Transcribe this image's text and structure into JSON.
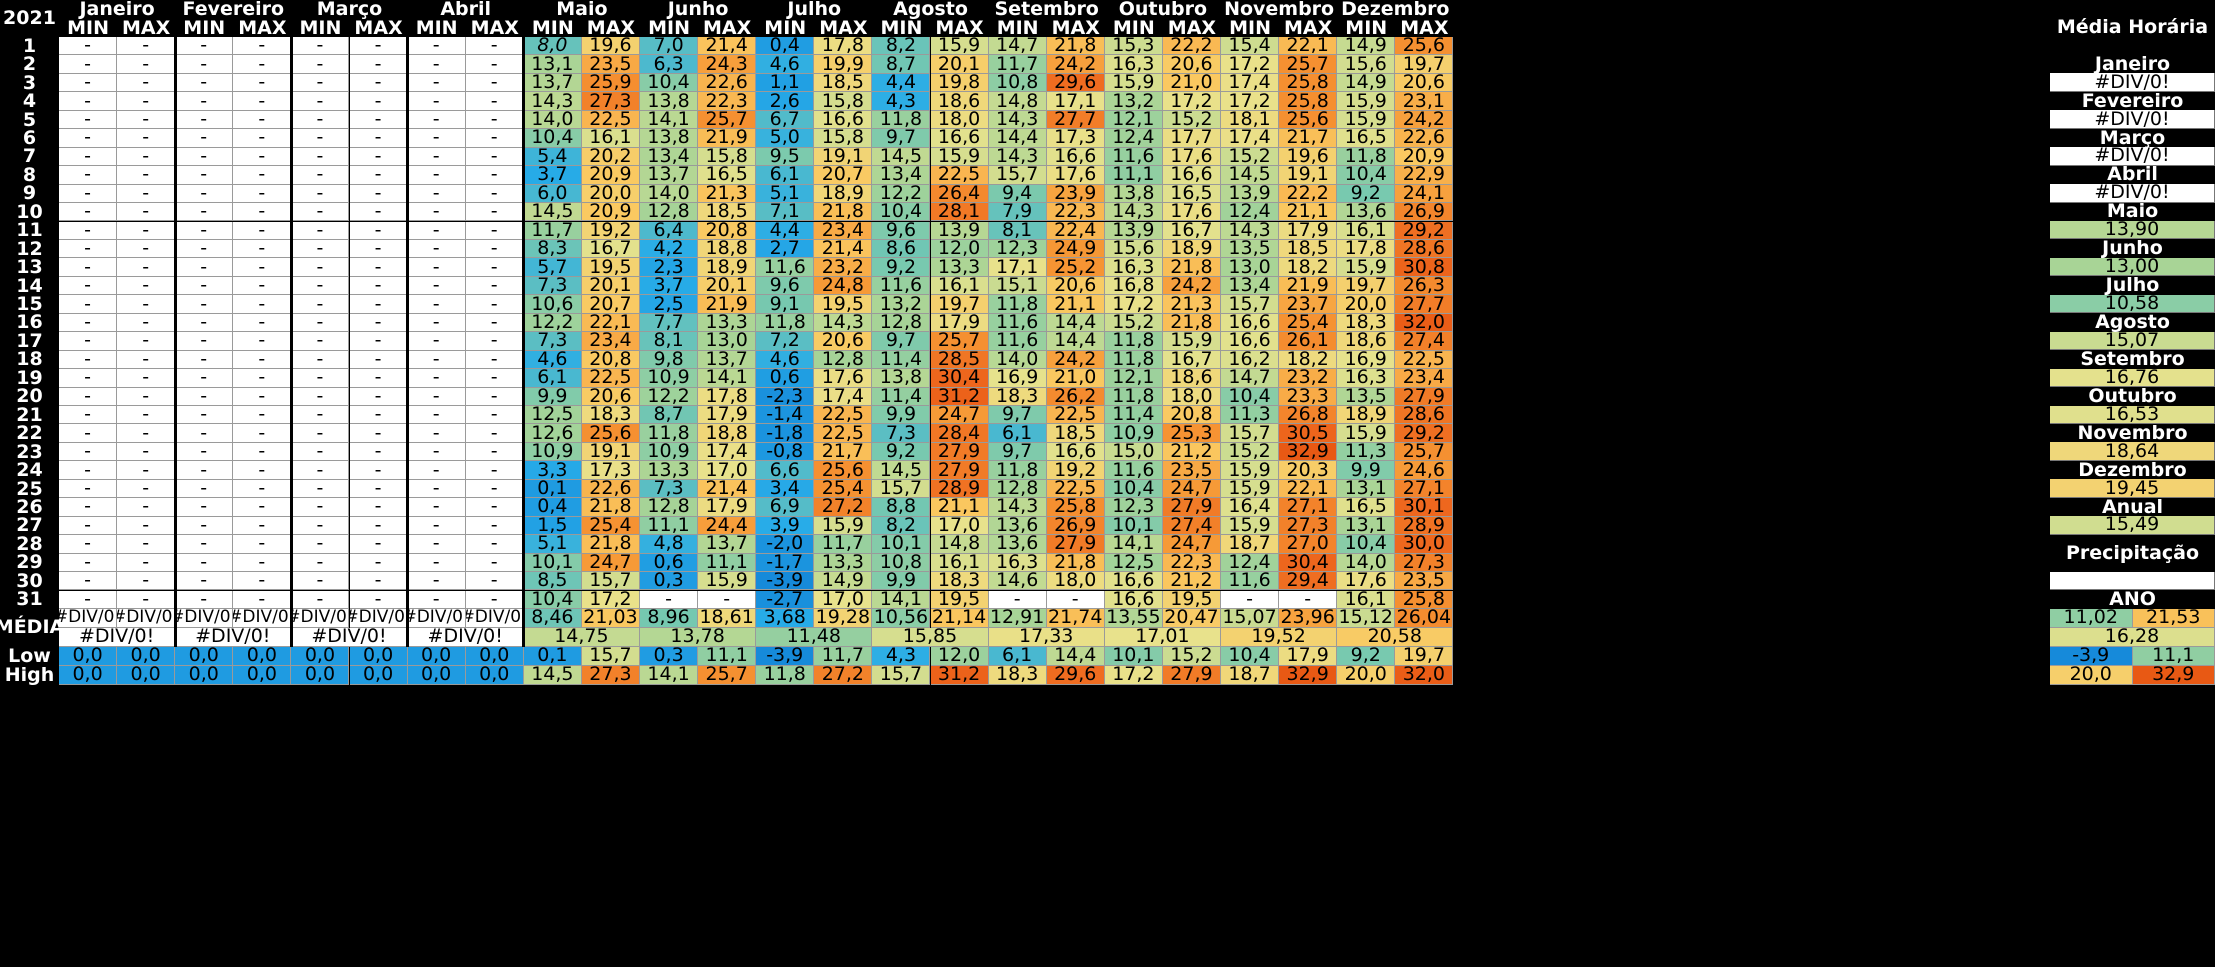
{
  "year": "2021",
  "months": [
    "Janeiro",
    "Fevereiro",
    "Março",
    "Abril",
    "Maio",
    "Junho",
    "Julho",
    "Agosto",
    "Setembro",
    "Outubro",
    "Novembro",
    "Dezembro"
  ],
  "min_label": "MIN",
  "max_label": "MAX",
  "days": [
    "1",
    "2",
    "3",
    "4",
    "5",
    "6",
    "7",
    "8",
    "9",
    "10",
    "11",
    "12",
    "13",
    "14",
    "15",
    "16",
    "17",
    "18",
    "19",
    "20",
    "21",
    "22",
    "23",
    "24",
    "25",
    "26",
    "27",
    "28",
    "29",
    "30",
    "31"
  ],
  "table": [
    [
      "-",
      "-",
      "-",
      "-",
      "-",
      "-",
      "-",
      "-",
      "8,0",
      "19,6",
      "7,0",
      "21,4",
      "0,4",
      "17,8",
      "8,2",
      "15,9",
      "14,7",
      "21,8",
      "15,3",
      "22,2",
      "15,4",
      "22,1",
      "14,9",
      "25,6"
    ],
    [
      "-",
      "-",
      "-",
      "-",
      "-",
      "-",
      "-",
      "-",
      "13,1",
      "23,5",
      "6,3",
      "24,3",
      "4,6",
      "19,9",
      "8,7",
      "20,1",
      "11,7",
      "24,2",
      "16,3",
      "20,6",
      "17,2",
      "25,7",
      "15,6",
      "19,7"
    ],
    [
      "-",
      "-",
      "-",
      "-",
      "-",
      "-",
      "-",
      "-",
      "13,7",
      "25,9",
      "10,4",
      "22,6",
      "1,1",
      "18,5",
      "4,4",
      "19,8",
      "10,8",
      "29,6",
      "15,9",
      "21,0",
      "17,4",
      "25,8",
      "14,9",
      "20,6"
    ],
    [
      "-",
      "-",
      "-",
      "-",
      "-",
      "-",
      "-",
      "-",
      "14,3",
      "27,3",
      "13,8",
      "22,3",
      "2,6",
      "15,8",
      "4,3",
      "18,6",
      "14,8",
      "17,1",
      "13,2",
      "17,2",
      "17,2",
      "25,8",
      "15,9",
      "23,1"
    ],
    [
      "-",
      "-",
      "-",
      "-",
      "-",
      "-",
      "-",
      "-",
      "14,0",
      "22,5",
      "14,1",
      "25,7",
      "6,7",
      "16,6",
      "11,8",
      "18,0",
      "14,3",
      "27,7",
      "12,1",
      "15,2",
      "18,1",
      "25,6",
      "15,9",
      "24,2"
    ],
    [
      "-",
      "-",
      "-",
      "-",
      "-",
      "-",
      "-",
      "-",
      "10,4",
      "16,1",
      "13,8",
      "21,9",
      "5,0",
      "15,8",
      "9,7",
      "16,6",
      "14,4",
      "17,3",
      "12,4",
      "17,7",
      "17,4",
      "21,7",
      "16,5",
      "22,6"
    ],
    [
      "-",
      "-",
      "-",
      "-",
      "-",
      "-",
      "-",
      "-",
      "5,4",
      "20,2",
      "13,4",
      "15,8",
      "9,5",
      "19,1",
      "14,5",
      "15,9",
      "14,3",
      "16,6",
      "11,6",
      "17,6",
      "15,2",
      "19,6",
      "11,8",
      "20,9"
    ],
    [
      "-",
      "-",
      "-",
      "-",
      "-",
      "-",
      "-",
      "-",
      "3,7",
      "20,9",
      "13,7",
      "16,5",
      "6,1",
      "20,7",
      "13,4",
      "22,5",
      "15,7",
      "17,6",
      "11,1",
      "16,6",
      "14,5",
      "19,1",
      "10,4",
      "22,9"
    ],
    [
      "-",
      "-",
      "-",
      "-",
      "-",
      "-",
      "-",
      "-",
      "6,0",
      "20,0",
      "14,0",
      "21,3",
      "5,1",
      "18,9",
      "12,2",
      "26,4",
      "9,4",
      "23,9",
      "13,8",
      "16,5",
      "13,9",
      "22,2",
      "9,2",
      "24,1"
    ],
    [
      "-",
      "-",
      "-",
      "-",
      "-",
      "-",
      "-",
      "-",
      "14,5",
      "20,9",
      "12,8",
      "18,5",
      "7,1",
      "21,8",
      "10,4",
      "28,1",
      "7,9",
      "22,3",
      "14,3",
      "17,6",
      "12,4",
      "21,1",
      "13,6",
      "26,9"
    ],
    [
      "-",
      "-",
      "-",
      "-",
      "-",
      "-",
      "-",
      "-",
      "11,7",
      "19,2",
      "6,4",
      "20,8",
      "4,4",
      "23,4",
      "9,6",
      "13,9",
      "8,1",
      "22,4",
      "13,9",
      "16,7",
      "14,3",
      "17,9",
      "16,1",
      "29,2"
    ],
    [
      "-",
      "-",
      "-",
      "-",
      "-",
      "-",
      "-",
      "-",
      "8,3",
      "16,7",
      "4,2",
      "18,8",
      "2,7",
      "21,4",
      "8,6",
      "12,0",
      "12,3",
      "24,9",
      "15,6",
      "18,9",
      "13,5",
      "18,5",
      "17,8",
      "28,6"
    ],
    [
      "-",
      "-",
      "-",
      "-",
      "-",
      "-",
      "-",
      "-",
      "5,7",
      "19,5",
      "2,3",
      "18,9",
      "11,6",
      "23,2",
      "9,2",
      "13,3",
      "17,1",
      "25,2",
      "16,3",
      "21,8",
      "13,0",
      "18,2",
      "15,9",
      "30,8"
    ],
    [
      "-",
      "-",
      "-",
      "-",
      "-",
      "-",
      "-",
      "-",
      "7,3",
      "20,1",
      "3,7",
      "20,1",
      "9,6",
      "24,8",
      "11,6",
      "16,1",
      "15,1",
      "20,6",
      "16,8",
      "24,2",
      "13,4",
      "21,9",
      "19,7",
      "26,3"
    ],
    [
      "-",
      "-",
      "-",
      "-",
      "-",
      "-",
      "-",
      "-",
      "10,6",
      "20,7",
      "2,5",
      "21,9",
      "9,1",
      "19,5",
      "13,2",
      "19,7",
      "11,8",
      "21,1",
      "17,2",
      "21,3",
      "15,7",
      "23,7",
      "20,0",
      "27,7"
    ],
    [
      "-",
      "-",
      "-",
      "-",
      "-",
      "-",
      "-",
      "-",
      "12,2",
      "22,1",
      "7,7",
      "13,3",
      "11,8",
      "14,3",
      "12,8",
      "17,9",
      "11,6",
      "14,4",
      "15,2",
      "21,8",
      "16,6",
      "25,4",
      "18,3",
      "32,0"
    ],
    [
      "-",
      "-",
      "-",
      "-",
      "-",
      "-",
      "-",
      "-",
      "7,3",
      "23,4",
      "8,1",
      "13,0",
      "7,2",
      "20,6",
      "9,7",
      "25,7",
      "11,6",
      "14,4",
      "11,8",
      "15,9",
      "16,6",
      "26,1",
      "18,6",
      "27,4"
    ],
    [
      "-",
      "-",
      "-",
      "-",
      "-",
      "-",
      "-",
      "-",
      "4,6",
      "20,8",
      "9,8",
      "13,7",
      "4,6",
      "12,8",
      "11,4",
      "28,5",
      "14,0",
      "24,2",
      "11,8",
      "16,7",
      "16,2",
      "18,2",
      "16,9",
      "22,5"
    ],
    [
      "-",
      "-",
      "-",
      "-",
      "-",
      "-",
      "-",
      "-",
      "6,1",
      "22,5",
      "10,9",
      "14,1",
      "0,6",
      "17,6",
      "13,8",
      "30,4",
      "16,9",
      "21,0",
      "12,1",
      "18,6",
      "14,7",
      "23,2",
      "16,3",
      "23,4"
    ],
    [
      "-",
      "-",
      "-",
      "-",
      "-",
      "-",
      "-",
      "-",
      "9,9",
      "20,6",
      "12,2",
      "17,8",
      "-2,3",
      "17,4",
      "11,4",
      "31,2",
      "18,3",
      "26,2",
      "11,8",
      "18,0",
      "10,4",
      "23,3",
      "13,5",
      "27,9"
    ],
    [
      "-",
      "-",
      "-",
      "-",
      "-",
      "-",
      "-",
      "-",
      "12,5",
      "18,3",
      "8,7",
      "17,9",
      "-1,4",
      "22,5",
      "9,9",
      "24,7",
      "9,7",
      "22,5",
      "11,4",
      "20,8",
      "11,3",
      "26,8",
      "18,9",
      "28,6"
    ],
    [
      "-",
      "-",
      "-",
      "-",
      "-",
      "-",
      "-",
      "-",
      "12,6",
      "25,6",
      "11,8",
      "18,8",
      "-1,8",
      "22,5",
      "7,3",
      "28,4",
      "6,1",
      "18,5",
      "10,9",
      "25,3",
      "15,7",
      "30,5",
      "15,9",
      "29,2"
    ],
    [
      "-",
      "-",
      "-",
      "-",
      "-",
      "-",
      "-",
      "-",
      "10,9",
      "19,1",
      "10,9",
      "17,4",
      "-0,8",
      "21,7",
      "9,2",
      "27,9",
      "9,7",
      "16,6",
      "15,0",
      "21,2",
      "15,2",
      "32,9",
      "11,3",
      "25,7"
    ],
    [
      "-",
      "-",
      "-",
      "-",
      "-",
      "-",
      "-",
      "-",
      "3,3",
      "17,3",
      "13,3",
      "17,0",
      "6,6",
      "25,6",
      "14,5",
      "27,9",
      "11,8",
      "19,2",
      "11,6",
      "23,5",
      "15,9",
      "20,3",
      "9,9",
      "24,6"
    ],
    [
      "-",
      "-",
      "-",
      "-",
      "-",
      "-",
      "-",
      "-",
      "0,1",
      "22,6",
      "7,3",
      "21,4",
      "3,4",
      "25,4",
      "15,7",
      "28,9",
      "12,8",
      "22,5",
      "10,4",
      "24,7",
      "15,9",
      "22,1",
      "13,1",
      "27,1"
    ],
    [
      "-",
      "-",
      "-",
      "-",
      "-",
      "-",
      "-",
      "-",
      "0,4",
      "21,8",
      "12,8",
      "17,9",
      "6,9",
      "27,2",
      "8,8",
      "21,1",
      "14,3",
      "25,8",
      "12,3",
      "27,9",
      "16,4",
      "27,1",
      "16,5",
      "30,1"
    ],
    [
      "-",
      "-",
      "-",
      "-",
      "-",
      "-",
      "-",
      "-",
      "1,5",
      "25,4",
      "11,1",
      "24,4",
      "3,9",
      "15,9",
      "8,2",
      "17,0",
      "13,6",
      "26,9",
      "10,1",
      "27,4",
      "15,9",
      "27,3",
      "13,1",
      "28,9"
    ],
    [
      "-",
      "-",
      "-",
      "-",
      "-",
      "-",
      "-",
      "-",
      "5,1",
      "21,8",
      "4,8",
      "13,7",
      "-2,0",
      "11,7",
      "10,1",
      "14,8",
      "13,6",
      "27,9",
      "14,1",
      "24,7",
      "18,7",
      "27,0",
      "10,4",
      "30,0"
    ],
    [
      "-",
      "-",
      "-",
      "-",
      "-",
      "-",
      "-",
      "-",
      "10,1",
      "24,7",
      "0,6",
      "11,1",
      "-1,7",
      "13,3",
      "10,8",
      "16,1",
      "16,3",
      "21,8",
      "12,5",
      "22,3",
      "12,4",
      "30,4",
      "14,0",
      "27,3"
    ],
    [
      "-",
      "-",
      "-",
      "-",
      "-",
      "-",
      "-",
      "-",
      "8,5",
      "15,7",
      "0,3",
      "15,9",
      "-3,9",
      "14,9",
      "9,9",
      "18,3",
      "14,6",
      "18,0",
      "16,6",
      "21,2",
      "11,6",
      "29,4",
      "17,6",
      "23,5"
    ],
    [
      "-",
      "-",
      "-",
      "-",
      "-",
      "-",
      "-",
      "-",
      "10,4",
      "17,2",
      "-",
      "-",
      "-2,7",
      "17,0",
      "14,1",
      "19,5",
      "-",
      "-",
      "16,6",
      "19,5",
      "-",
      "-",
      "16,1",
      "25,8"
    ]
  ],
  "media_label": "MÉDIA",
  "media_row": [
    "#DIV/0!",
    "#DIV/0!",
    "#DIV/0!",
    "#DIV/0!",
    "#DIV/0!",
    "#DIV/0!",
    "#DIV/0!",
    "#DIV/0!",
    "8,46",
    "21,03",
    "8,96",
    "18,61",
    "3,68",
    "19,28",
    "10,56",
    "21,14",
    "12,91",
    "21,74",
    "13,55",
    "20,47",
    "15,07",
    "23,96",
    "15,12",
    "26,04"
  ],
  "media_month": [
    "#DIV/0!",
    "#DIV/0!",
    "#DIV/0!",
    "#DIV/0!",
    "14,75",
    "13,78",
    "11,48",
    "15,85",
    "17,33",
    "17,01",
    "19,52",
    "20,58"
  ],
  "low_label": "Low",
  "low_row": [
    "0,0",
    "0,0",
    "0,0",
    "0,0",
    "0,0",
    "0,0",
    "0,0",
    "0,0",
    "0,1",
    "15,7",
    "0,3",
    "11,1",
    "-3,9",
    "11,7",
    "4,3",
    "12,0",
    "6,1",
    "14,4",
    "10,1",
    "15,2",
    "10,4",
    "17,9",
    "9,2",
    "19,7"
  ],
  "high_label": "High",
  "high_row": [
    "0,0",
    "0,0",
    "0,0",
    "0,0",
    "0,0",
    "0,0",
    "0,0",
    "0,0",
    "14,5",
    "27,3",
    "14,1",
    "25,7",
    "11,8",
    "27,2",
    "15,7",
    "31,2",
    "18,3",
    "29,6",
    "17,2",
    "27,9",
    "18,7",
    "32,9",
    "20,0",
    "32,0"
  ],
  "side": {
    "title": "Média Horária",
    "items": [
      {
        "label": "Janeiro",
        "value": "#DIV/0!"
      },
      {
        "label": "Fevereiro",
        "value": "#DIV/0!"
      },
      {
        "label": "Março",
        "value": "#DIV/0!"
      },
      {
        "label": "Abril",
        "value": "#DIV/0!"
      },
      {
        "label": "Maio",
        "value": "13,90"
      },
      {
        "label": "Junho",
        "value": "13,00"
      },
      {
        "label": "Julho",
        "value": "10,58"
      },
      {
        "label": "Agosto",
        "value": "15,07"
      },
      {
        "label": "Setembro",
        "value": "16,76"
      },
      {
        "label": "Outubro",
        "value": "16,53"
      },
      {
        "label": "Novembro",
        "value": "18,64"
      },
      {
        "label": "Dezembro",
        "value": "19,45"
      },
      {
        "label": "Anual",
        "value": "15,49"
      }
    ],
    "precip_label": "Precipitação",
    "precip_value": "",
    "ano_label": "ANO",
    "ano_min_label": "MIN",
    "ano_max_label": "MAX",
    "ano_media_min": "11,02",
    "ano_media_max": "21,53",
    "ano_media_avg": "16,28",
    "ano_low_min": "-3,9",
    "ano_low_max": "11,1",
    "ano_high_min": "20,0",
    "ano_high_max": "32,9"
  }
}
